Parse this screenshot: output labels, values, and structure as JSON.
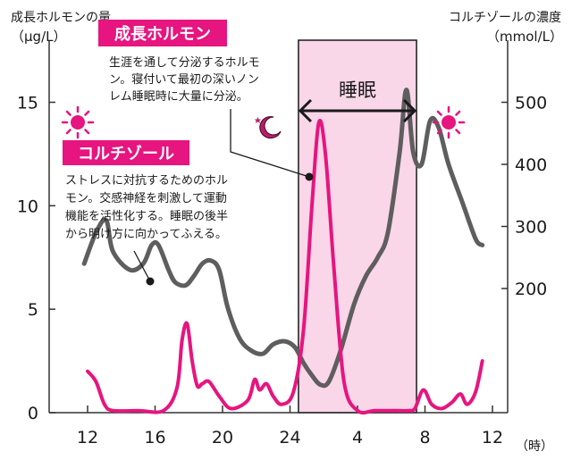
{
  "chart_data": {
    "type": "line",
    "x_categories": [
      "12",
      "16",
      "20",
      "24",
      "4",
      "8",
      "12"
    ],
    "x_unit": "（時）",
    "y_left": {
      "label": "成長ホルモンの量",
      "unit": "（μg/L）",
      "ticks": [
        "0",
        "5",
        "10",
        "15"
      ],
      "ylim": [
        0,
        18
      ]
    },
    "y_right": {
      "label": "コルチゾールの濃度",
      "unit": "（mmol/L）",
      "ticks": [
        "200",
        "300",
        "400",
        "500"
      ],
      "ylim": [
        0,
        600
      ]
    },
    "sleep_period": {
      "label": "睡眠",
      "start": "24:30",
      "end": "7:30"
    },
    "series": [
      {
        "name": "成長ホルモン",
        "color": "#e6157f",
        "axis": "left",
        "description": [
          "生涯を通して分泌するホルモ",
          "ン。寝付いて最初の深いノン",
          "レム睡眠時に大量に分泌。"
        ],
        "points": [
          [
            12,
            2
          ],
          [
            12.5,
            1.5
          ],
          [
            13,
            0.4
          ],
          [
            13.5,
            0.1
          ],
          [
            15,
            0.1
          ],
          [
            16.5,
            0.1
          ],
          [
            17.3,
            1.2
          ],
          [
            17.6,
            3.5
          ],
          [
            17.9,
            4.3
          ],
          [
            18.2,
            2.5
          ],
          [
            18.5,
            1.3
          ],
          [
            18.8,
            1.4
          ],
          [
            19.2,
            1.5
          ],
          [
            19.8,
            0.8
          ],
          [
            20.5,
            0.2
          ],
          [
            21.5,
            0.6
          ],
          [
            21.9,
            1.6
          ],
          [
            22.2,
            1.1
          ],
          [
            22.6,
            1.4
          ],
          [
            23,
            0.8
          ],
          [
            23.5,
            0.4
          ],
          [
            24.2,
            1
          ],
          [
            24.8,
            4
          ],
          [
            25.3,
            10
          ],
          [
            25.7,
            14
          ],
          [
            26.1,
            12.5
          ],
          [
            26.6,
            7
          ],
          [
            27.2,
            1.5
          ],
          [
            28,
            0.1
          ],
          [
            29,
            0.1
          ],
          [
            30,
            0.1
          ],
          [
            31,
            0.1
          ],
          [
            31.4,
            0.2
          ],
          [
            31.9,
            1.1
          ],
          [
            32.4,
            0.4
          ],
          [
            33,
            0.2
          ],
          [
            33.6,
            0.5
          ],
          [
            34.1,
            0.9
          ],
          [
            34.5,
            0.4
          ],
          [
            35,
            1
          ],
          [
            35.4,
            2.5
          ]
        ]
      },
      {
        "name": "コルチゾール",
        "color": "#5e5e5e",
        "axis": "right",
        "description": [
          "ストレスに対抗するためのホル",
          "モン。交感神経を刺激して運動",
          "機能を活性化する。睡眠の後半",
          "から明け方に向かってふえる。"
        ],
        "points": [
          [
            11.8,
            240
          ],
          [
            12.5,
            290
          ],
          [
            13.1,
            310
          ],
          [
            13.5,
            260
          ],
          [
            14.5,
            230
          ],
          [
            15.3,
            240
          ],
          [
            15.8,
            270
          ],
          [
            16.2,
            270
          ],
          [
            16.8,
            230
          ],
          [
            17.2,
            210
          ],
          [
            17.8,
            205
          ],
          [
            18.3,
            220
          ],
          [
            18.8,
            240
          ],
          [
            19.3,
            245
          ],
          [
            19.8,
            230
          ],
          [
            20.3,
            170
          ],
          [
            21,
            120
          ],
          [
            21.7,
            100
          ],
          [
            22.4,
            95
          ],
          [
            23,
            110
          ],
          [
            23.7,
            115
          ],
          [
            24.3,
            105
          ],
          [
            24.8,
            80
          ],
          [
            25.3,
            60
          ],
          [
            25.8,
            45
          ],
          [
            26.3,
            50
          ],
          [
            27,
            100
          ],
          [
            27.8,
            175
          ],
          [
            28.5,
            220
          ],
          [
            29.2,
            250
          ],
          [
            29.8,
            290
          ],
          [
            30.5,
            420
          ],
          [
            30.9,
            520
          ],
          [
            31.3,
            420
          ],
          [
            31.8,
            400
          ],
          [
            32.3,
            470
          ],
          [
            32.8,
            460
          ],
          [
            33.4,
            400
          ],
          [
            34.2,
            340
          ],
          [
            35,
            280
          ],
          [
            35.4,
            270
          ]
        ]
      }
    ]
  },
  "annotations": {
    "sleep_label": "睡眠",
    "gh_badge": "成長ホルモン",
    "cortisol_badge": "コルチゾール"
  },
  "icons": {
    "sun": "sun-icon",
    "moon": "moon-star-icon"
  },
  "colors": {
    "pink": "#e6157f",
    "gray": "#5e5e5e",
    "sleep_band": "#fad6e9",
    "axis": "#333333"
  }
}
